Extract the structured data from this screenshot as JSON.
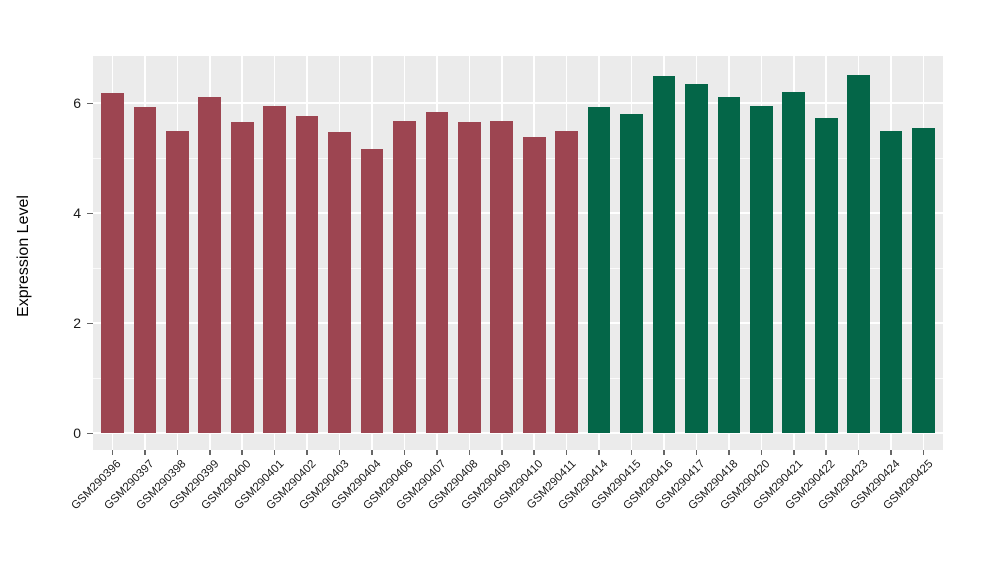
{
  "chart_data": {
    "type": "bar",
    "title": "",
    "xlabel": "",
    "ylabel": "Expression Level",
    "legend": "none",
    "grid": "on",
    "panel_background": "#EBEBEB",
    "grid_color": "#FFFFFF",
    "tick_color": "#666666",
    "yticks": [
      0,
      2,
      4,
      6
    ],
    "ylim": [
      -0.3,
      6.86
    ],
    "categories": [
      "GSM290396",
      "GSM290397",
      "GSM290398",
      "GSM290399",
      "GSM290400",
      "GSM290401",
      "GSM290402",
      "GSM290403",
      "GSM290404",
      "GSM290406",
      "GSM290407",
      "GSM290408",
      "GSM290409",
      "GSM290410",
      "GSM290411",
      "GSM290414",
      "GSM290415",
      "GSM290416",
      "GSM290417",
      "GSM290418",
      "GSM290420",
      "GSM290421",
      "GSM290422",
      "GSM290423",
      "GSM290424",
      "GSM290425"
    ],
    "values": [
      6.18,
      5.94,
      5.5,
      6.12,
      5.66,
      5.95,
      5.77,
      5.47,
      5.17,
      5.67,
      5.84,
      5.66,
      5.68,
      5.39,
      5.49,
      5.94,
      5.8,
      6.5,
      6.35,
      6.11,
      5.95,
      6.21,
      5.73,
      6.52,
      5.49,
      5.56
    ],
    "series_groups": [
      "maroon",
      "maroon",
      "maroon",
      "maroon",
      "maroon",
      "maroon",
      "maroon",
      "maroon",
      "maroon",
      "maroon",
      "maroon",
      "maroon",
      "maroon",
      "maroon",
      "maroon",
      "green",
      "green",
      "green",
      "green",
      "green",
      "green",
      "green",
      "green",
      "green",
      "green",
      "green"
    ],
    "group_colors": {
      "maroon": "#9D4551",
      "green": "#046648"
    }
  }
}
